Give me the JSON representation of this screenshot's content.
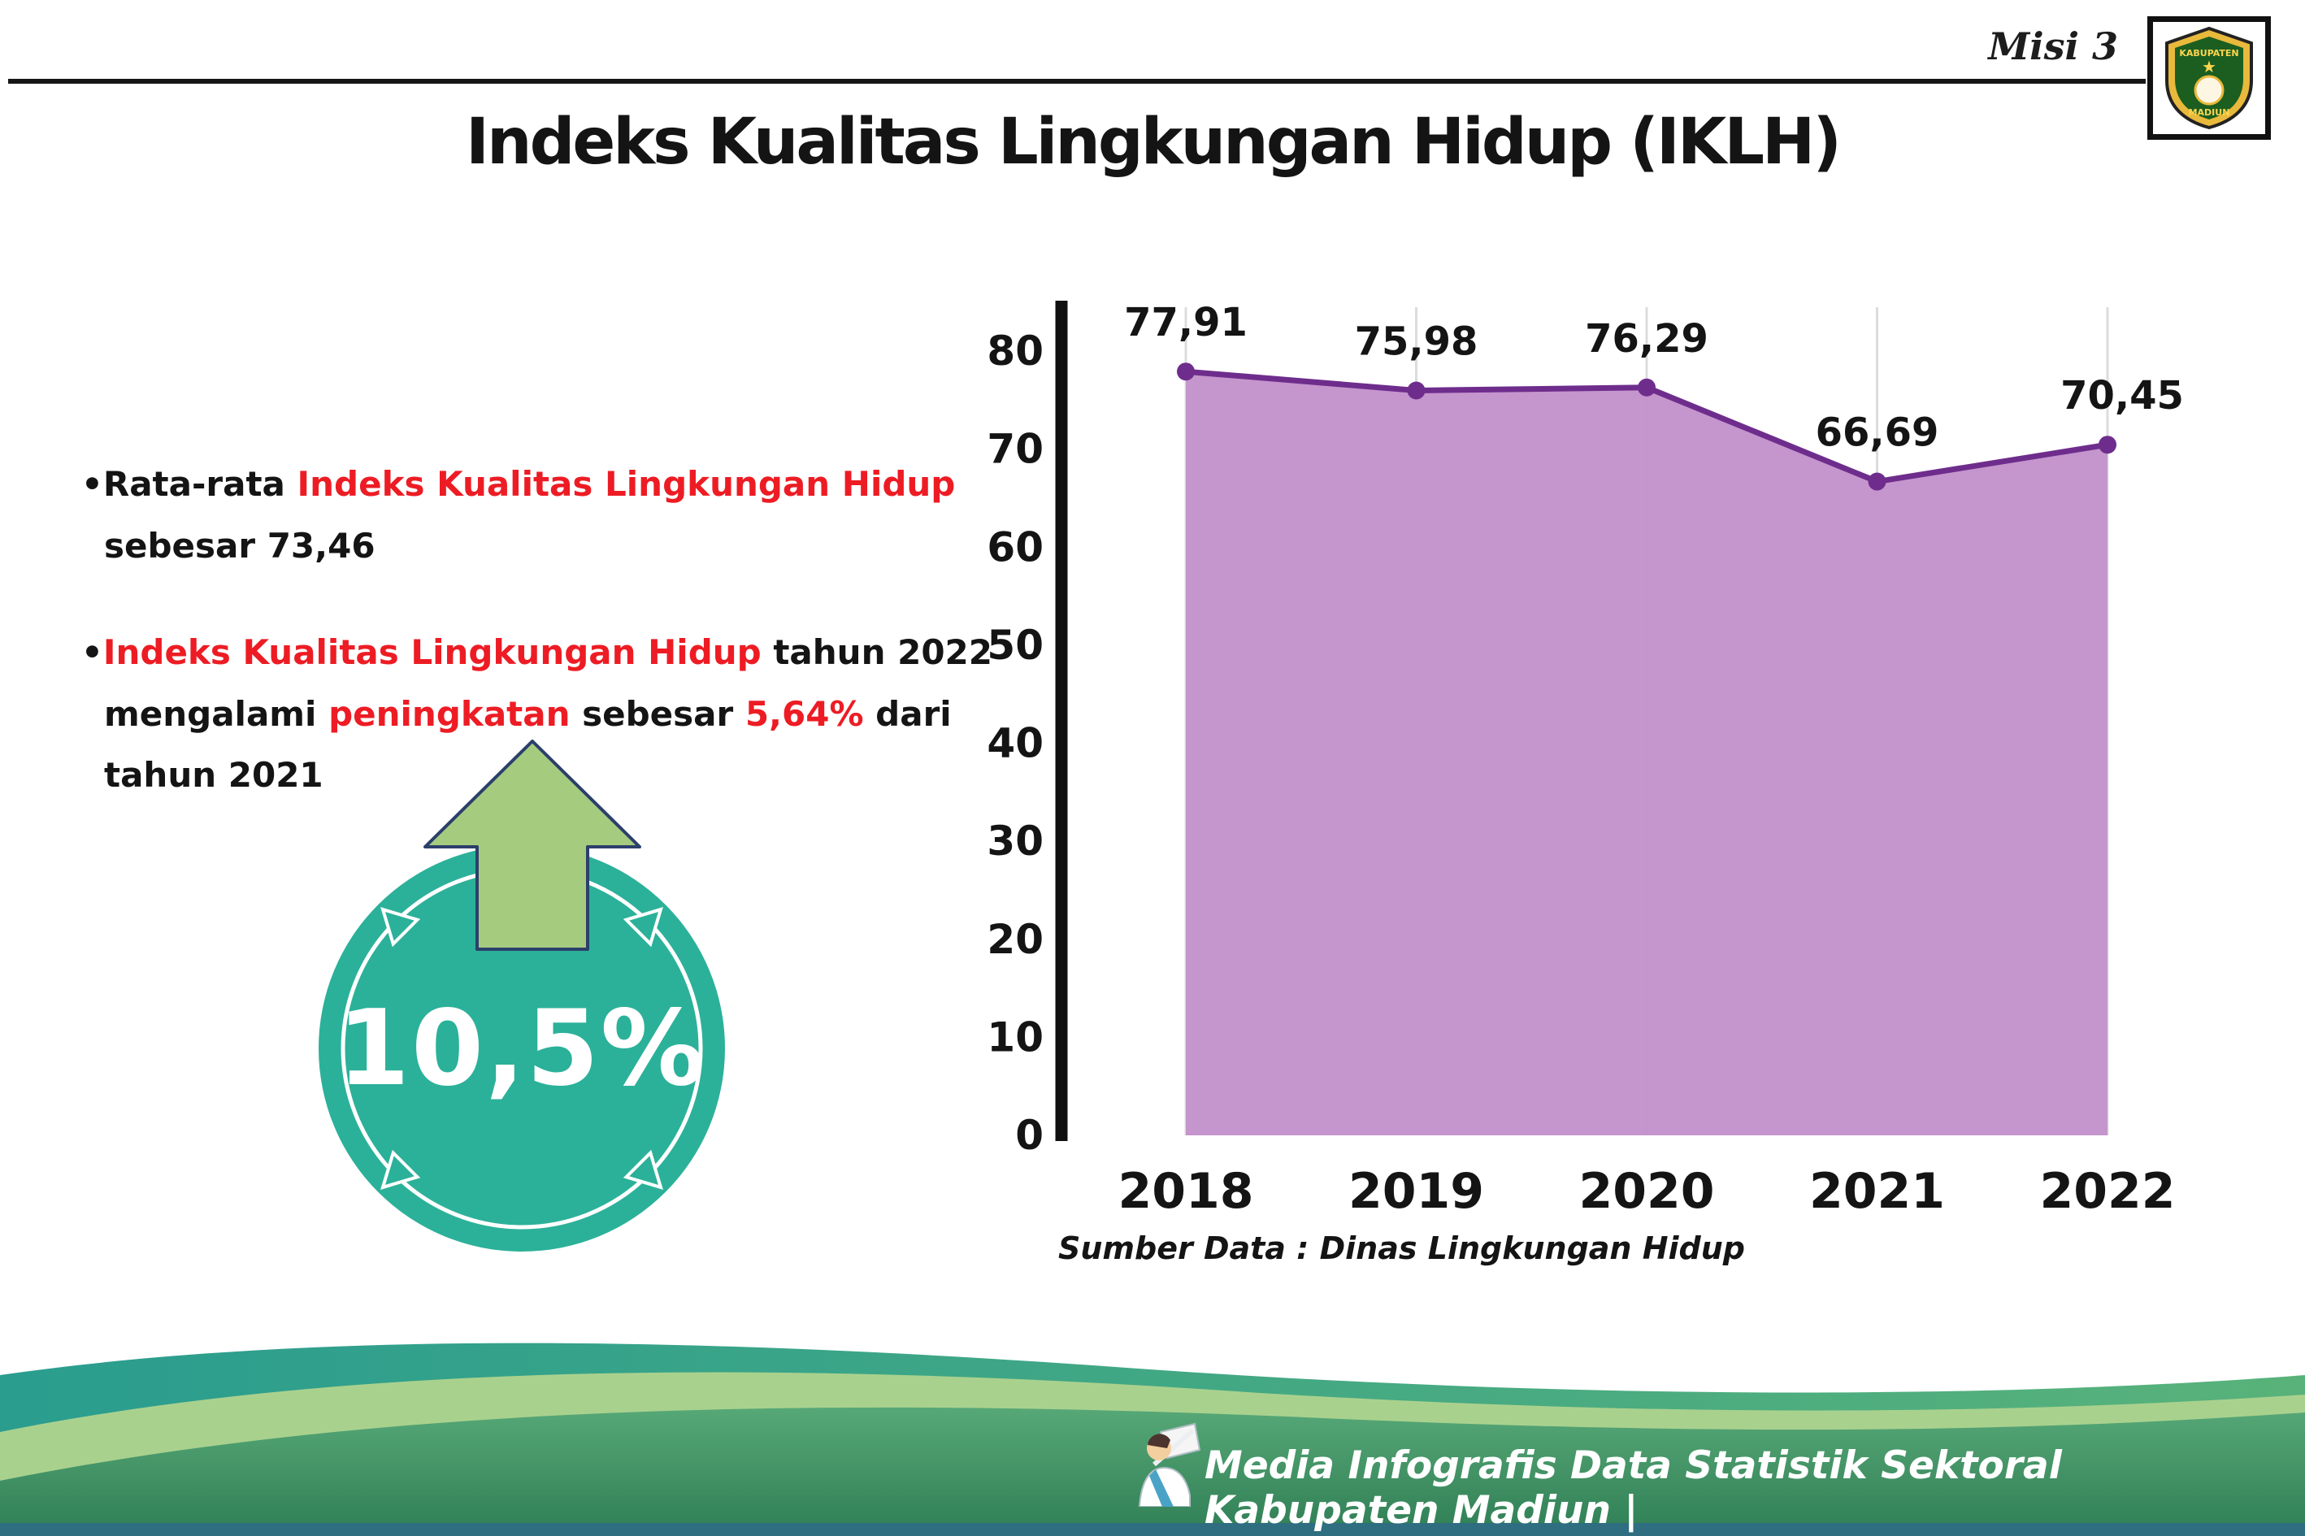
{
  "header": {
    "misi_label": "Misi 3",
    "title": "Indeks Kualitas Lingkungan Hidup (IKLH)",
    "logo": {
      "kabupaten": "KABUPATEN",
      "madiun": "MADIUN"
    }
  },
  "bullets": {
    "dot": "•",
    "b1": {
      "pre": "Rata-rata ",
      "red": "Indeks Kualitas Lingkungan Hidup",
      "line2": "sebesar 73,46"
    },
    "b2": {
      "red1": "Indeks Kualitas Lingkungan Hidup",
      "t1": " tahun 2022",
      "t2": "mengalami ",
      "red2": "peningkatan",
      "t3": " sebesar ",
      "red3": "5,64%",
      "t4": " dari",
      "line3": "tahun 2021"
    }
  },
  "badge": {
    "value": "10,5%"
  },
  "chart_data": {
    "type": "area",
    "title": "Indeks Kualitas Lingkungan Hidup (IKLH)",
    "categories": [
      "2018",
      "2019",
      "2020",
      "2021",
      "2022"
    ],
    "values": [
      77.91,
      75.98,
      76.29,
      66.69,
      70.45
    ],
    "point_labels": [
      "77,91",
      "75,98",
      "76,29",
      "66,69",
      "70,45"
    ],
    "xlabel": "",
    "ylabel": "",
    "ylim": [
      0,
      80
    ],
    "yticks": [
      0,
      10,
      20,
      30,
      40,
      50,
      60,
      70,
      80
    ],
    "grid": "vertical",
    "legend": "none",
    "line_color": "#6e2d8c",
    "fill_color": "#c28fca",
    "source": "Sumber Data : Dinas Lingkungan Hidup"
  },
  "footer": {
    "credit": "Media Infografis Data Statistik Sektoral Kabupaten Madiun |"
  },
  "colors": {
    "accent_red": "#ed1c24",
    "badge_teal": "#2bb199",
    "arrow_green": "#a5cb7f",
    "chart_line_purple": "#6e2d8c",
    "chart_fill_purple": "#c28fca",
    "footer_teal": "#2a9d8f",
    "footer_light_green": "#a9d18e",
    "footer_green": "#3f9368",
    "footer_strip_blue": "#2e6e80",
    "axis_black": "#141414"
  }
}
